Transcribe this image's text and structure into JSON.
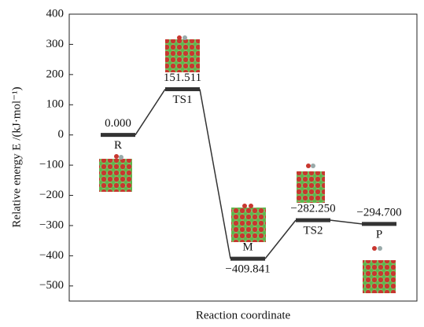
{
  "chart_data": {
    "type": "profile",
    "x_label": "Reaction coordinate",
    "y_label": "Relative energy E /(kJ·mol⁻¹)",
    "categories": [
      "R",
      "TS1",
      "M",
      "TS2",
      "P"
    ],
    "values": [
      0,
      151.511,
      -409.841,
      -282.25,
      -294.7
    ],
    "value_labels": [
      "0.000",
      "151.511",
      "−409.841",
      "−282.250",
      "−294.700"
    ],
    "color": "#333333",
    "ylim": [
      -550,
      400
    ],
    "yticks": [
      400,
      300,
      200,
      100,
      0,
      {
        "value": -100,
        "label": "−100"
      },
      {
        "value": -200,
        "label": "−200"
      },
      {
        "value": -300,
        "label": "−300"
      },
      {
        "value": -400,
        "label": "−400"
      },
      {
        "value": -500,
        "label": "−500"
      }
    ]
  }
}
